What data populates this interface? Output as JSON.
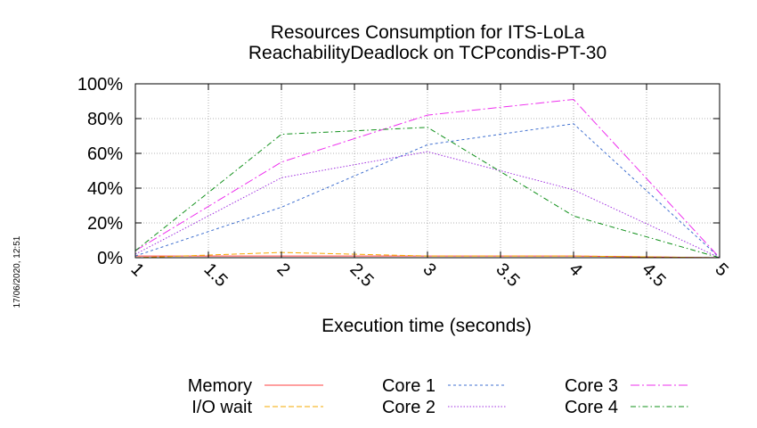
{
  "chart_data": {
    "type": "line",
    "title": "Resources Consumption for ITS-LoLa",
    "subtitle": "ReachabilityDeadlock on TCPcondis-PT-30",
    "xlabel": "Execution time (seconds)",
    "ylabel": "",
    "xlim": [
      1,
      5
    ],
    "ylim": [
      0,
      100
    ],
    "x_ticks": [
      "1",
      "1.5",
      "2",
      "2.5",
      "3",
      "3.5",
      "4",
      "4.5",
      "5"
    ],
    "y_ticks": [
      "0%",
      "20%",
      "40%",
      "60%",
      "80%",
      "100%"
    ],
    "grid": true,
    "legend_position": "bottom",
    "timestamp": "17/06/2020, 12:51",
    "series": [
      {
        "name": "Memory",
        "color": "#ff4040",
        "dash": "solid",
        "x": [
          1,
          2,
          3,
          4,
          5
        ],
        "y": [
          1,
          1,
          1,
          1,
          0
        ]
      },
      {
        "name": "I/O wait",
        "color": "#f5a800",
        "dash": "dashed",
        "x": [
          1,
          2,
          3,
          4,
          5
        ],
        "y": [
          0,
          3,
          1,
          1,
          0
        ]
      },
      {
        "name": "Core 1",
        "color": "#4070d0",
        "dash": "dotted",
        "x": [
          1,
          2,
          3,
          4,
          5
        ],
        "y": [
          1,
          29,
          65,
          77,
          0
        ]
      },
      {
        "name": "Core 2",
        "color": "#a030e0",
        "dash": "dotted2",
        "x": [
          1,
          2,
          3,
          4,
          5
        ],
        "y": [
          2,
          46,
          61,
          39,
          0
        ]
      },
      {
        "name": "Core 3",
        "color": "#ee30ee",
        "dash": "dashdot",
        "x": [
          1,
          2,
          3,
          4,
          5
        ],
        "y": [
          4,
          55,
          82,
          91,
          0
        ]
      },
      {
        "name": "Core 4",
        "color": "#10901a",
        "dash": "dashdot2",
        "x": [
          1,
          2,
          3,
          4,
          5
        ],
        "y": [
          4,
          71,
          75,
          24,
          0
        ]
      }
    ]
  }
}
